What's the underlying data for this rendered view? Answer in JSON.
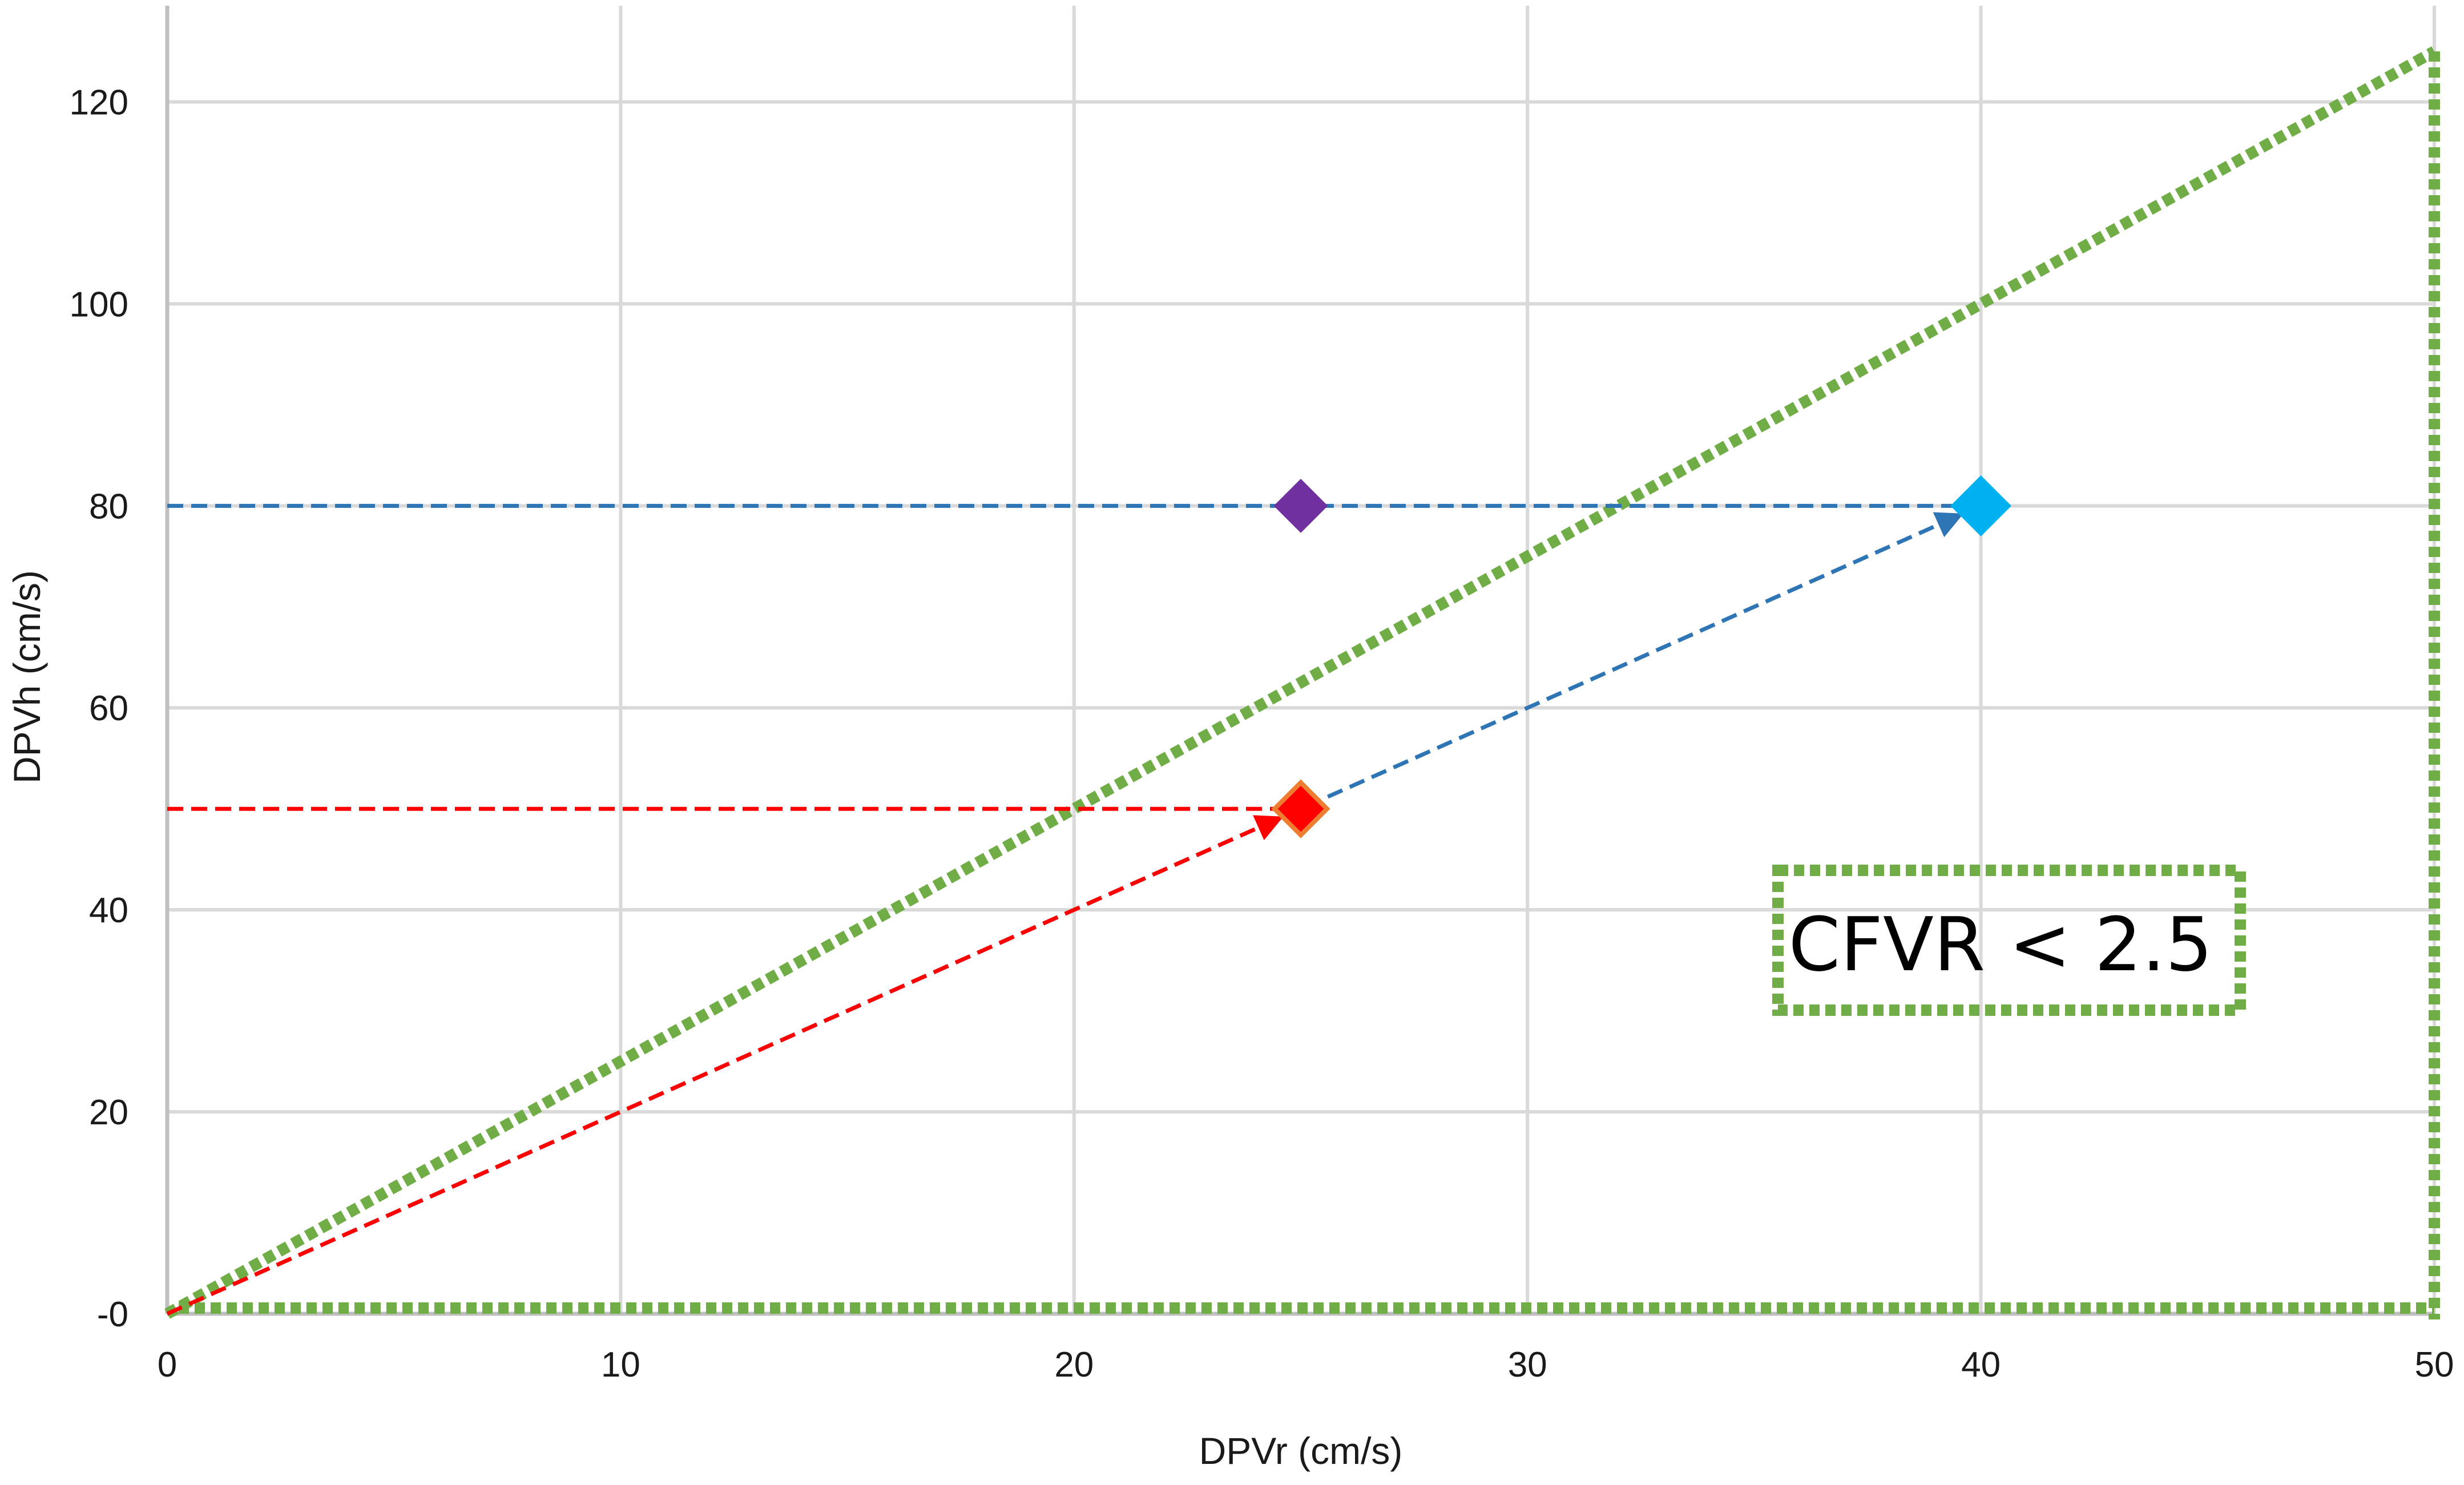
{
  "chart_data": {
    "type": "scatter",
    "title": "",
    "xlabel": "DPVr (cm/s)",
    "ylabel": "DPVh (cm/s)",
    "xlim": [
      0,
      50
    ],
    "ylim": [
      0,
      125
    ],
    "grid": true,
    "x_ticks": [
      "0",
      "10",
      "20",
      "30",
      "40",
      "50"
    ],
    "y_ticks": [
      "-0",
      "20",
      "40",
      "60",
      "80",
      "100",
      "120"
    ],
    "points": [
      {
        "x": 25,
        "y": 80,
        "color": "#7030a0",
        "marker": "diamond"
      },
      {
        "x": 25,
        "y": 50,
        "color": "#ff0000",
        "edge": "#ed7d31",
        "marker": "diamond"
      },
      {
        "x": 40,
        "y": 80,
        "color": "#00b0f0",
        "marker": "diamond"
      }
    ],
    "reference_lines": [
      {
        "from": [
          0,
          80
        ],
        "to": [
          40,
          80
        ],
        "color": "#2e75b6",
        "style": "dashed"
      },
      {
        "from": [
          0,
          50
        ],
        "to": [
          25,
          50
        ],
        "color": "#ff0000",
        "style": "dashed"
      },
      {
        "from": [
          0,
          0
        ],
        "to": [
          40,
          80
        ],
        "color": "#2e75b6",
        "style": "dashed",
        "arrow": true
      },
      {
        "from": [
          0,
          0
        ],
        "to": [
          25,
          50
        ],
        "color": "#ff0000",
        "style": "dashed",
        "arrow": true
      }
    ],
    "region": {
      "boundary": [
        [
          0,
          0
        ],
        [
          50,
          125
        ],
        [
          50,
          0
        ]
      ],
      "color": "#70ad47",
      "style": "dotted"
    },
    "annotation": {
      "text": "CFVR < 2.5",
      "color": "#70ad47"
    }
  }
}
